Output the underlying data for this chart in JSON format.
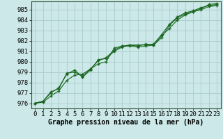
{
  "xlabel": "Graphe pression niveau de la mer (hPa)",
  "bg_color": "#cce8e8",
  "grid_color": "#aacccc",
  "line_color": "#1a6620",
  "marker_color": "#1a6620",
  "xlim": [
    -0.5,
    23.5
  ],
  "ylim": [
    975.5,
    985.8
  ],
  "yticks": [
    976,
    977,
    978,
    979,
    980,
    981,
    982,
    983,
    984,
    985
  ],
  "xticks": [
    0,
    1,
    2,
    3,
    4,
    5,
    6,
    7,
    8,
    9,
    10,
    11,
    12,
    13,
    14,
    15,
    16,
    17,
    18,
    19,
    20,
    21,
    22,
    23
  ],
  "series": [
    [
      976.0,
      976.1,
      976.7,
      977.2,
      978.2,
      978.7,
      978.8,
      979.3,
      979.8,
      980.0,
      981.3,
      981.5,
      981.5,
      981.4,
      981.5,
      981.6,
      982.5,
      983.2,
      984.0,
      984.5,
      984.8,
      985.0,
      985.3,
      985.4
    ],
    [
      976.0,
      976.2,
      977.0,
      977.5,
      978.8,
      979.2,
      978.5,
      979.2,
      980.2,
      980.3,
      981.0,
      981.4,
      981.6,
      981.5,
      981.7,
      981.6,
      982.3,
      983.5,
      984.2,
      984.6,
      984.8,
      985.1,
      985.5,
      985.6
    ],
    [
      976.0,
      976.2,
      977.1,
      977.4,
      978.9,
      979.0,
      978.6,
      979.3,
      980.1,
      980.4,
      981.1,
      981.5,
      981.6,
      981.6,
      981.6,
      981.7,
      982.6,
      983.6,
      984.3,
      984.7,
      984.9,
      985.2,
      985.4,
      985.5
    ]
  ],
  "xlabel_fontsize": 7,
  "tick_fontsize": 6.5
}
